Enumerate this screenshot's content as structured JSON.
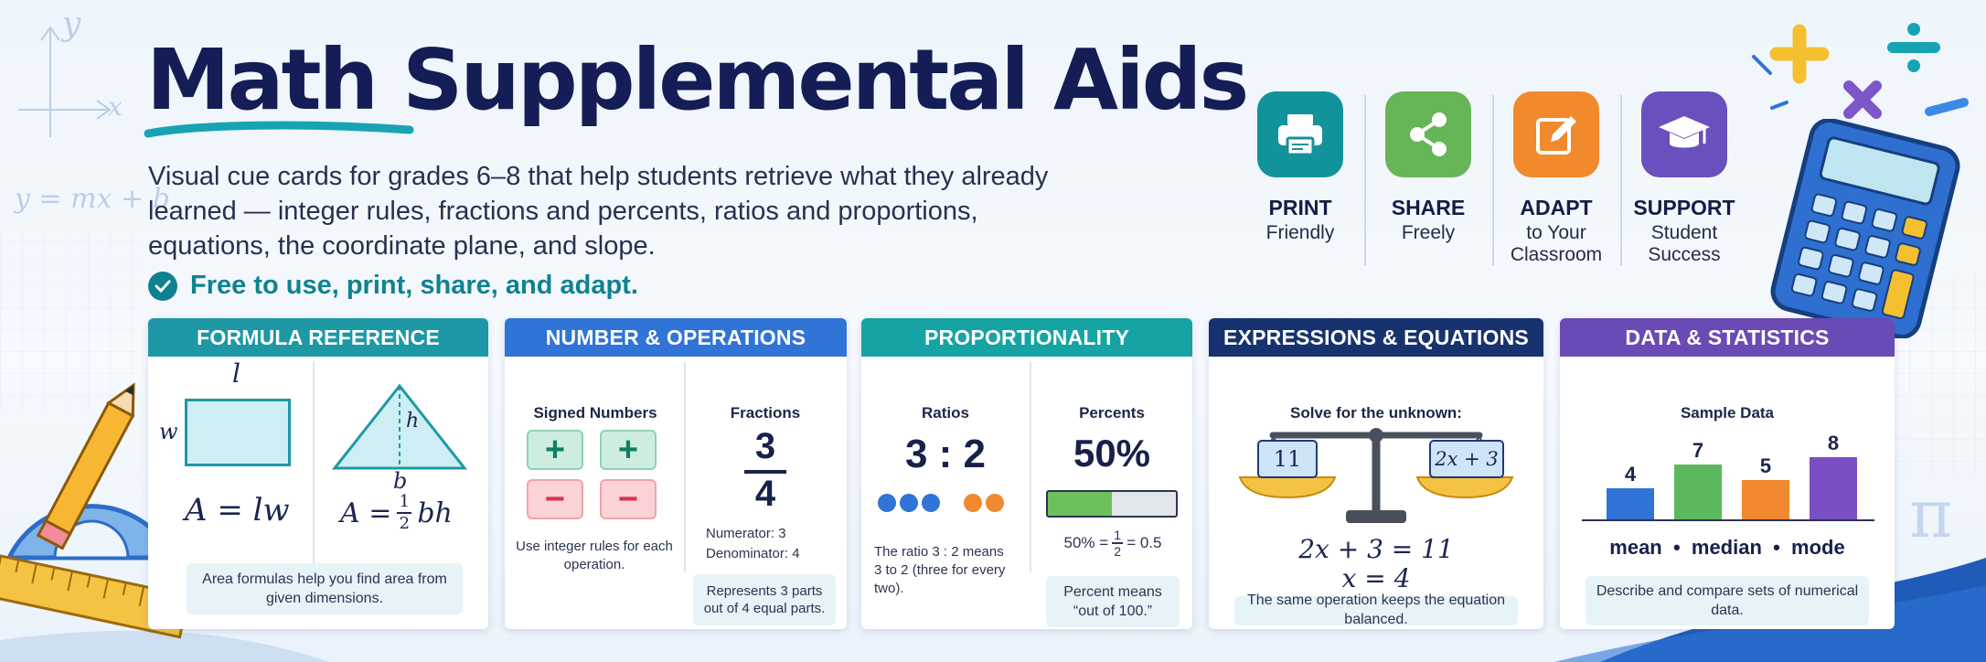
{
  "title": "Math Supplemental Aids",
  "description": "Visual cue cards for grades 6–8 that help students retrieve what they already learned — integer rules, fractions and percents, ratios and proportions, equations, the coordinate plane, and slope.",
  "free_note": "Free to use, print, share, and adapt.",
  "deco": {
    "y_label": "y",
    "x_label": "x",
    "eq": "y = mx + b",
    "pi": "π"
  },
  "features": [
    {
      "title": "PRINT",
      "sub": "Friendly",
      "color": "#12939c",
      "icon": "printer-icon"
    },
    {
      "title": "SHARE",
      "sub": "Freely",
      "color": "#66b556",
      "icon": "share-icon"
    },
    {
      "title": "ADAPT",
      "sub": "to Your Classroom",
      "color": "#f08a2d",
      "icon": "edit-icon"
    },
    {
      "title": "SUPPORT",
      "sub": "Student Success",
      "color": "#6a4fbf",
      "icon": "graduation-cap-icon"
    }
  ],
  "cards": {
    "formula": {
      "header": "FORMULA REFERENCE",
      "color": "#1d98a4",
      "rect_l": "l",
      "rect_w": "w",
      "rect_formula": "A = lw",
      "tri_h": "h",
      "tri_b": "b",
      "tri_formula_left": "A =",
      "tri_frac_num": "1",
      "tri_frac_den": "2",
      "tri_formula_right": "bh",
      "note": "Area formulas help you find area from given dimensions."
    },
    "number": {
      "header": "NUMBER & OPERATIONS",
      "color": "#2f74d6",
      "signed_title": "Signed Numbers",
      "plus": "+",
      "minus": "−",
      "signed_note": "Use integer rules for each operation.",
      "fractions_title": "Fractions",
      "num": "3",
      "den": "4",
      "numerator_text": "Numerator: 3",
      "denominator_text": "Denominator: 4",
      "fractions_note": "Represents 3 parts out of 4 equal parts."
    },
    "proportionality": {
      "header": "PROPORTIONALITY",
      "color": "#16a3a4",
      "ratios_title": "Ratios",
      "ratio": "3 : 2",
      "ratio_note": "The ratio 3 : 2 means 3 to 2 (three for every two).",
      "percents_title": "Percents",
      "percent": "50%",
      "percent_level": 0.5,
      "percent_eq_left": "50% =",
      "percent_frac_num": "1",
      "percent_frac_den": "2",
      "percent_eq_right": "= 0.5",
      "percent_note": "Percent means “out of 100.”"
    },
    "expressions": {
      "header": "EXPRESSIONS & EQUATIONS",
      "color": "#17336f",
      "title": "Solve for the unknown:",
      "left_pan": "11",
      "right_pan": "2x + 3",
      "eq1": "2x + 3 = 11",
      "eq2": "x = 4",
      "note": "The same operation keeps the equation balanced."
    },
    "data": {
      "header": "DATA & STATISTICS",
      "color": "#6a4ab4",
      "title": "Sample Data",
      "values": [
        4,
        7,
        5,
        8
      ],
      "labels": [
        "4",
        "7",
        "5",
        "8"
      ],
      "bar_colors": [
        "#2f74d6",
        "#5cb85c",
        "#f0892f",
        "#7b4fc4"
      ],
      "stats_line": "mean  •  median  •  mode",
      "note": "Describe and compare sets of numerical data."
    }
  }
}
